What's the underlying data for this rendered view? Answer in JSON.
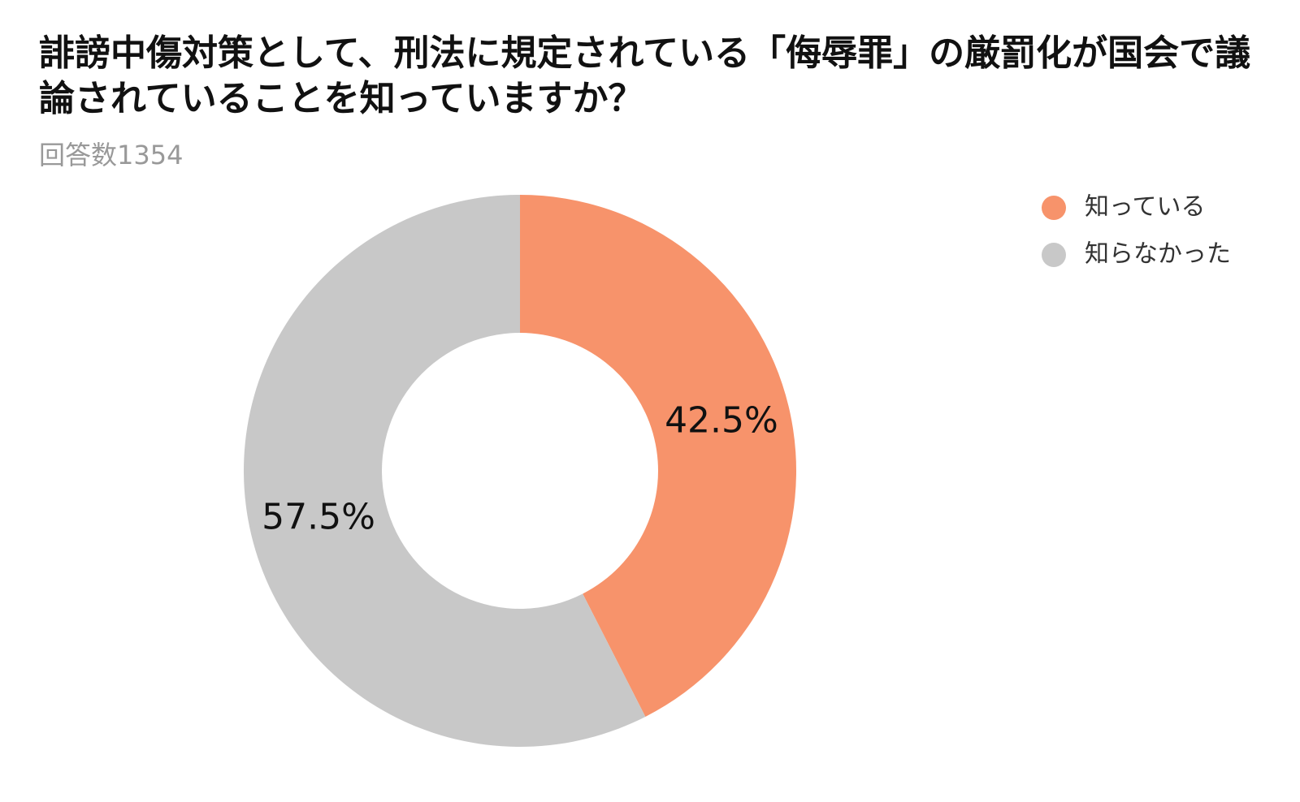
{
  "chart_data": {
    "type": "donut",
    "title": "誹謗中傷対策として、刑法に規定されている「侮辱罪」の厳罰化が国会で議論されていることを知っていますか？",
    "subtitle": "回答数1354",
    "categories": [
      "知っている",
      "知らなかった"
    ],
    "values": [
      42.5,
      57.5
    ],
    "value_labels": [
      "42.5%",
      "57.5%"
    ],
    "colors": [
      "#f7936b",
      "#c8c8c8"
    ],
    "legend": "top-right"
  }
}
